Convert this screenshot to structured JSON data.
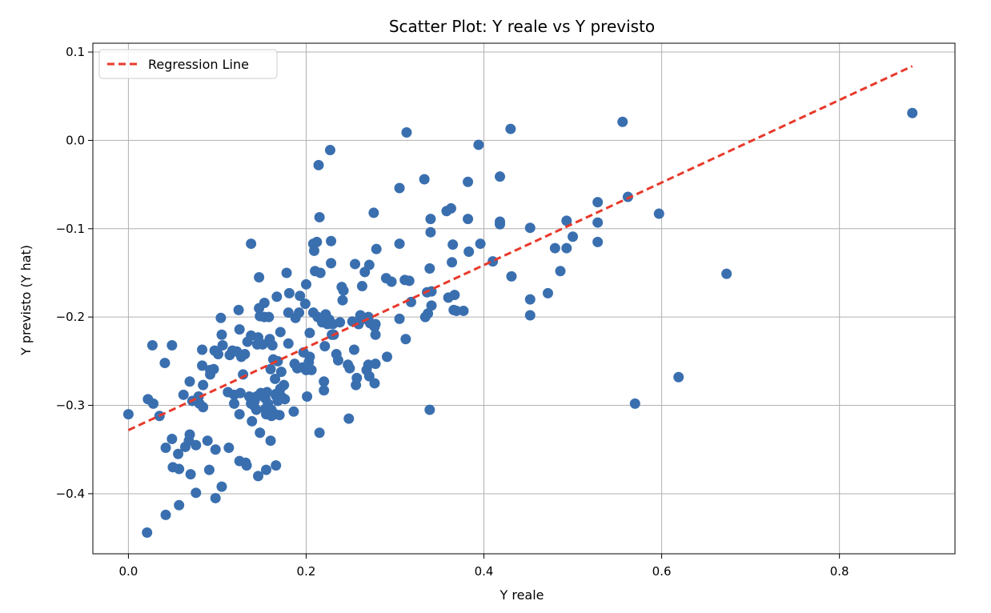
{
  "chart_data": {
    "type": "scatter",
    "title": "Scatter Plot: Y reale vs Y previsto",
    "xlabel": "Y reale",
    "ylabel": "Y previsto (Y hat)",
    "xlim": [
      -0.04,
      0.93
    ],
    "ylim": [
      -0.468,
      0.11
    ],
    "xticks": [
      0.0,
      0.2,
      0.4,
      0.6,
      0.8
    ],
    "xtick_labels": [
      "0.0",
      "0.2",
      "0.4",
      "0.6",
      "0.8"
    ],
    "yticks": [
      0.1,
      0.0,
      -0.1,
      -0.2,
      -0.3,
      -0.4
    ],
    "ytick_labels": [
      "0.1",
      "0.0",
      "−0.1",
      "−0.2",
      "−0.3",
      "−0.4"
    ],
    "grid": true,
    "legend": {
      "placement": "top-left",
      "entries": [
        {
          "label": "Regression Line",
          "style": "dashed",
          "color": "#e8392b"
        }
      ]
    },
    "colors": {
      "points": "#3a6faf",
      "regression_line": "#e8392b",
      "grid": "#b0b0b0"
    },
    "regression_line": {
      "name": "Regression Line",
      "x": [
        0.0,
        0.882
      ],
      "y": [
        -0.328,
        0.084
      ]
    },
    "series": [
      {
        "points": [
          [
            0.0,
            -0.31
          ],
          [
            0.021,
            -0.444
          ],
          [
            0.022,
            -0.293
          ],
          [
            0.027,
            -0.232
          ],
          [
            0.028,
            -0.298
          ],
          [
            0.035,
            -0.312
          ],
          [
            0.041,
            -0.252
          ],
          [
            0.042,
            -0.424
          ],
          [
            0.042,
            -0.348
          ],
          [
            0.049,
            -0.232
          ],
          [
            0.049,
            -0.338
          ],
          [
            0.05,
            -0.37
          ],
          [
            0.056,
            -0.355
          ],
          [
            0.057,
            -0.413
          ],
          [
            0.057,
            -0.372
          ],
          [
            0.062,
            -0.288
          ],
          [
            0.064,
            -0.347
          ],
          [
            0.068,
            -0.34
          ],
          [
            0.069,
            -0.333
          ],
          [
            0.069,
            -0.273
          ],
          [
            0.07,
            -0.378
          ],
          [
            0.072,
            -0.295
          ],
          [
            0.076,
            -0.345
          ],
          [
            0.076,
            -0.399
          ],
          [
            0.079,
            -0.29
          ],
          [
            0.08,
            -0.298
          ],
          [
            0.083,
            -0.237
          ],
          [
            0.083,
            -0.255
          ],
          [
            0.084,
            -0.277
          ],
          [
            0.084,
            -0.302
          ],
          [
            0.089,
            -0.34
          ],
          [
            0.091,
            -0.373
          ],
          [
            0.092,
            -0.265
          ],
          [
            0.092,
            -0.26
          ],
          [
            0.096,
            -0.259
          ],
          [
            0.097,
            -0.238
          ],
          [
            0.098,
            -0.35
          ],
          [
            0.098,
            -0.405
          ],
          [
            0.101,
            -0.242
          ],
          [
            0.104,
            -0.201
          ],
          [
            0.105,
            -0.22
          ],
          [
            0.105,
            -0.392
          ],
          [
            0.106,
            -0.232
          ],
          [
            0.112,
            -0.285
          ],
          [
            0.113,
            -0.348
          ],
          [
            0.114,
            -0.243
          ],
          [
            0.117,
            -0.238
          ],
          [
            0.119,
            -0.298
          ],
          [
            0.119,
            -0.288
          ],
          [
            0.122,
            -0.239
          ],
          [
            0.124,
            -0.192
          ],
          [
            0.125,
            -0.363
          ],
          [
            0.125,
            -0.31
          ],
          [
            0.125,
            -0.214
          ],
          [
            0.126,
            -0.286
          ],
          [
            0.127,
            -0.245
          ],
          [
            0.129,
            -0.265
          ],
          [
            0.131,
            -0.242
          ],
          [
            0.132,
            -0.365
          ],
          [
            0.133,
            -0.368
          ],
          [
            0.134,
            -0.228
          ],
          [
            0.136,
            -0.29
          ],
          [
            0.138,
            -0.117
          ],
          [
            0.138,
            -0.221
          ],
          [
            0.138,
            -0.298
          ],
          [
            0.139,
            -0.318
          ],
          [
            0.141,
            -0.3
          ],
          [
            0.142,
            -0.295
          ],
          [
            0.144,
            -0.29
          ],
          [
            0.144,
            -0.305
          ],
          [
            0.145,
            -0.231
          ],
          [
            0.146,
            -0.223
          ],
          [
            0.146,
            -0.38
          ],
          [
            0.147,
            -0.155
          ],
          [
            0.147,
            -0.19
          ],
          [
            0.148,
            -0.199
          ],
          [
            0.148,
            -0.331
          ],
          [
            0.149,
            -0.286
          ],
          [
            0.151,
            -0.231
          ],
          [
            0.152,
            -0.29
          ],
          [
            0.153,
            -0.2
          ],
          [
            0.153,
            -0.184
          ],
          [
            0.154,
            -0.292
          ],
          [
            0.154,
            -0.304
          ],
          [
            0.155,
            -0.373
          ],
          [
            0.155,
            -0.31
          ],
          [
            0.156,
            -0.285
          ],
          [
            0.157,
            -0.298
          ],
          [
            0.158,
            -0.2
          ],
          [
            0.159,
            -0.225
          ],
          [
            0.16,
            -0.259
          ],
          [
            0.16,
            -0.34
          ],
          [
            0.161,
            -0.312
          ],
          [
            0.161,
            -0.305
          ],
          [
            0.162,
            -0.232
          ],
          [
            0.163,
            -0.248
          ],
          [
            0.165,
            -0.31
          ],
          [
            0.165,
            -0.27
          ],
          [
            0.166,
            -0.287
          ],
          [
            0.166,
            -0.368
          ],
          [
            0.166,
            -0.289
          ],
          [
            0.167,
            -0.177
          ],
          [
            0.168,
            -0.25
          ],
          [
            0.168,
            -0.295
          ],
          [
            0.17,
            -0.311
          ],
          [
            0.171,
            -0.281
          ],
          [
            0.171,
            -0.217
          ],
          [
            0.172,
            -0.262
          ],
          [
            0.172,
            -0.29
          ],
          [
            0.175,
            -0.277
          ],
          [
            0.176,
            -0.293
          ],
          [
            0.178,
            -0.15
          ],
          [
            0.18,
            -0.23
          ],
          [
            0.18,
            -0.195
          ],
          [
            0.181,
            -0.173
          ],
          [
            0.186,
            -0.307
          ],
          [
            0.187,
            -0.253
          ],
          [
            0.188,
            -0.201
          ],
          [
            0.19,
            -0.258
          ],
          [
            0.192,
            -0.195
          ],
          [
            0.193,
            -0.176
          ],
          [
            0.196,
            -0.257
          ],
          [
            0.197,
            -0.24
          ],
          [
            0.199,
            -0.185
          ],
          [
            0.2,
            -0.163
          ],
          [
            0.2,
            -0.26
          ],
          [
            0.201,
            -0.29
          ],
          [
            0.203,
            -0.251
          ],
          [
            0.204,
            -0.218
          ],
          [
            0.204,
            -0.245
          ],
          [
            0.206,
            -0.26
          ],
          [
            0.208,
            -0.117
          ],
          [
            0.208,
            -0.195
          ],
          [
            0.209,
            -0.125
          ],
          [
            0.21,
            -0.148
          ],
          [
            0.212,
            -0.115
          ],
          [
            0.213,
            -0.2
          ],
          [
            0.214,
            -0.028
          ],
          [
            0.215,
            -0.087
          ],
          [
            0.215,
            -0.331
          ],
          [
            0.216,
            -0.15
          ],
          [
            0.218,
            -0.206
          ],
          [
            0.219,
            -0.201
          ],
          [
            0.22,
            -0.273
          ],
          [
            0.22,
            -0.283
          ],
          [
            0.221,
            -0.233
          ],
          [
            0.222,
            -0.197
          ],
          [
            0.223,
            -0.203
          ],
          [
            0.224,
            -0.208
          ],
          [
            0.226,
            -0.203
          ],
          [
            0.227,
            -0.011
          ],
          [
            0.228,
            -0.139
          ],
          [
            0.228,
            -0.114
          ],
          [
            0.229,
            -0.22
          ],
          [
            0.23,
            -0.208
          ],
          [
            0.231,
            -0.22
          ],
          [
            0.234,
            -0.242
          ],
          [
            0.236,
            -0.249
          ],
          [
            0.238,
            -0.206
          ],
          [
            0.24,
            -0.166
          ],
          [
            0.241,
            -0.181
          ],
          [
            0.242,
            -0.17
          ],
          [
            0.247,
            -0.254
          ],
          [
            0.248,
            -0.315
          ],
          [
            0.249,
            -0.258
          ],
          [
            0.252,
            -0.205
          ],
          [
            0.254,
            -0.237
          ],
          [
            0.255,
            -0.14
          ],
          [
            0.256,
            -0.277
          ],
          [
            0.257,
            -0.269
          ],
          [
            0.259,
            -0.208
          ],
          [
            0.261,
            -0.198
          ],
          [
            0.263,
            -0.165
          ],
          [
            0.265,
            -0.202
          ],
          [
            0.266,
            -0.149
          ],
          [
            0.268,
            -0.26
          ],
          [
            0.27,
            -0.254
          ],
          [
            0.27,
            -0.2
          ],
          [
            0.271,
            -0.267
          ],
          [
            0.271,
            -0.141
          ],
          [
            0.272,
            -0.207
          ],
          [
            0.276,
            -0.082
          ],
          [
            0.277,
            -0.275
          ],
          [
            0.277,
            -0.211
          ],
          [
            0.278,
            -0.208
          ],
          [
            0.278,
            -0.253
          ],
          [
            0.278,
            -0.22
          ],
          [
            0.279,
            -0.123
          ],
          [
            0.29,
            -0.156
          ],
          [
            0.291,
            -0.245
          ],
          [
            0.296,
            -0.16
          ],
          [
            0.305,
            -0.054
          ],
          [
            0.305,
            -0.117
          ],
          [
            0.305,
            -0.202
          ],
          [
            0.311,
            -0.158
          ],
          [
            0.312,
            -0.225
          ],
          [
            0.313,
            0.009
          ],
          [
            0.316,
            -0.159
          ],
          [
            0.318,
            -0.183
          ],
          [
            0.333,
            -0.044
          ],
          [
            0.334,
            -0.2
          ],
          [
            0.336,
            -0.172
          ],
          [
            0.337,
            -0.196
          ],
          [
            0.339,
            -0.305
          ],
          [
            0.339,
            -0.145
          ],
          [
            0.34,
            -0.089
          ],
          [
            0.34,
            -0.104
          ],
          [
            0.341,
            -0.187
          ],
          [
            0.341,
            -0.171
          ],
          [
            0.358,
            -0.08
          ],
          [
            0.36,
            -0.178
          ],
          [
            0.363,
            -0.077
          ],
          [
            0.364,
            -0.138
          ],
          [
            0.365,
            -0.118
          ],
          [
            0.366,
            -0.192
          ],
          [
            0.367,
            -0.175
          ],
          [
            0.369,
            -0.193
          ],
          [
            0.377,
            -0.193
          ],
          [
            0.382,
            -0.047
          ],
          [
            0.382,
            -0.089
          ],
          [
            0.383,
            -0.126
          ],
          [
            0.394,
            -0.005
          ],
          [
            0.396,
            -0.117
          ],
          [
            0.41,
            -0.137
          ],
          [
            0.418,
            -0.041
          ],
          [
            0.418,
            -0.092
          ],
          [
            0.418,
            -0.095
          ],
          [
            0.43,
            0.013
          ],
          [
            0.431,
            -0.154
          ],
          [
            0.452,
            -0.099
          ],
          [
            0.452,
            -0.18
          ],
          [
            0.452,
            -0.198
          ],
          [
            0.472,
            -0.173
          ],
          [
            0.48,
            -0.122
          ],
          [
            0.486,
            -0.148
          ],
          [
            0.493,
            -0.122
          ],
          [
            0.493,
            -0.091
          ],
          [
            0.5,
            -0.109
          ],
          [
            0.528,
            -0.07
          ],
          [
            0.528,
            -0.115
          ],
          [
            0.528,
            -0.093
          ],
          [
            0.556,
            0.021
          ],
          [
            0.562,
            -0.064
          ],
          [
            0.57,
            -0.298
          ],
          [
            0.597,
            -0.083
          ],
          [
            0.619,
            -0.268
          ],
          [
            0.673,
            -0.151
          ],
          [
            0.882,
            0.031
          ]
        ]
      }
    ]
  }
}
